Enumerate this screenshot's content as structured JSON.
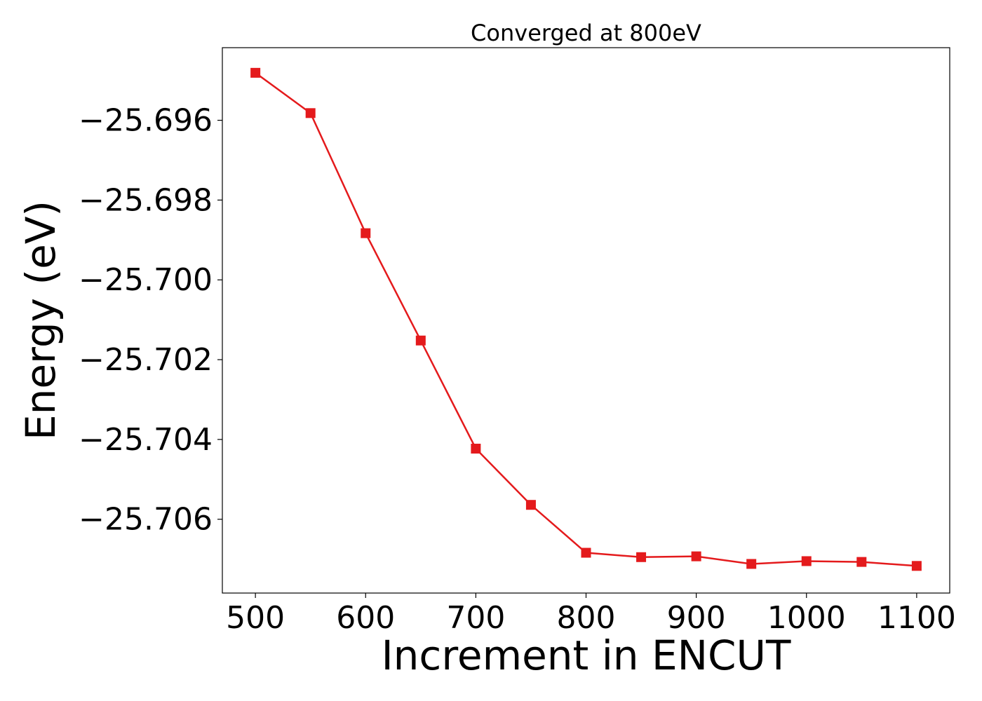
{
  "chart_data": {
    "type": "line",
    "title": "Converged at 800eV",
    "xlabel": "Increment in ENCUT",
    "ylabel": "Energy (eV)",
    "xlim": [
      470,
      1130
    ],
    "ylim": [
      -25.70785,
      -25.69418
    ],
    "xticks": [
      500,
      600,
      700,
      800,
      900,
      1000,
      1100
    ],
    "xtick_labels": [
      "500",
      "600",
      "700",
      "800",
      "900",
      "1000",
      "1100"
    ],
    "yticks": [
      -25.696,
      -25.698,
      -25.7,
      -25.702,
      -25.704,
      -25.706
    ],
    "ytick_labels": [
      "−25.696",
      "−25.698",
      "−25.700",
      "−25.702",
      "−25.704",
      "−25.706"
    ],
    "grid": false,
    "legend": "none",
    "series": [
      {
        "color": "#e41a1c",
        "marker": "square",
        "x": [
          500,
          550,
          600,
          650,
          700,
          750,
          800,
          850,
          900,
          950,
          1000,
          1050,
          1100
        ],
        "y": [
          -25.69481,
          -25.69582,
          -25.69883,
          -25.70152,
          -25.70423,
          -25.70564,
          -25.70684,
          -25.70695,
          -25.70693,
          -25.70712,
          -25.70705,
          -25.70707,
          -25.70717
        ]
      }
    ]
  }
}
